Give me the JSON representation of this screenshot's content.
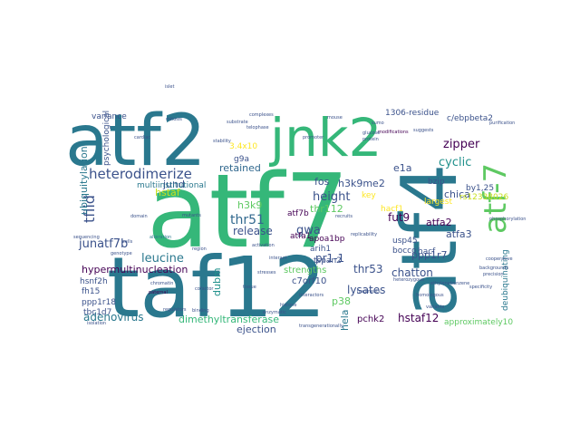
{
  "cloud": {
    "background": "#ffffff",
    "palette": [
      "#440154",
      "#3b528b",
      "#21918c",
      "#2a788e",
      "#5ec962",
      "#35b779",
      "#fde725",
      "#c8e020",
      "#31688e",
      "#482878"
    ],
    "words": [
      {
        "text": "atf7",
        "color": "#35b779"
      },
      {
        "text": "taf12",
        "color": "#2a788e"
      },
      {
        "text": "atf2",
        "color": "#2a788e"
      },
      {
        "text": "jnk2",
        "color": "#35b779"
      },
      {
        "text": "atf4",
        "color": "#2a788e"
      },
      {
        "text": "atf-7",
        "color": "#5ec962"
      },
      {
        "text": "heterodimerize",
        "color": "#3b528b"
      },
      {
        "text": "thr51",
        "color": "#31688e"
      },
      {
        "text": "retained",
        "color": "#31688e"
      },
      {
        "text": "height",
        "color": "#3b528b"
      },
      {
        "text": "tfiid",
        "color": "#3b528b"
      },
      {
        "text": "zipper",
        "color": "#440154"
      },
      {
        "text": "cyclic",
        "color": "#21918c"
      },
      {
        "text": "ubiquitylation",
        "color": "#2a788e"
      },
      {
        "text": "junatf7b",
        "color": "#3b528b"
      },
      {
        "text": "leucine",
        "color": "#2a788e"
      },
      {
        "text": "hypermultinucleation",
        "color": "#440154"
      },
      {
        "text": "release",
        "color": "#3b528b"
      },
      {
        "text": "gwa",
        "color": "#3b528b"
      },
      {
        "text": "h3k9me2",
        "color": "#3b528b"
      },
      {
        "text": "fut9",
        "color": "#440154"
      },
      {
        "text": "chica",
        "color": "#3b528b"
      },
      {
        "text": "e1a",
        "color": "#3b528b"
      },
      {
        "text": "fos",
        "color": "#3b528b"
      },
      {
        "text": "atfa2",
        "color": "#440154"
      },
      {
        "text": "atfa3",
        "color": "#3b528b"
      },
      {
        "text": "lysates",
        "color": "#3b528b"
      },
      {
        "text": "thr53",
        "color": "#3b528b"
      },
      {
        "text": "chatton",
        "color": "#3b528b"
      },
      {
        "text": "adenovirus",
        "color": "#2a788e"
      },
      {
        "text": "dimethyltransferase",
        "color": "#35b779"
      },
      {
        "text": "hstaf12",
        "color": "#440154"
      },
      {
        "text": "pchk2",
        "color": "#440154"
      },
      {
        "text": "p38",
        "color": "#5ec962"
      },
      {
        "text": "hela",
        "color": "#2a788e"
      },
      {
        "text": "ejection",
        "color": "#3b528b"
      },
      {
        "text": "dubm",
        "color": "#21918c"
      },
      {
        "text": "jund",
        "color": "#3b528b"
      },
      {
        "text": "hstaf",
        "color": "#c8e020"
      },
      {
        "text": "h3k9",
        "color": "#5ec962"
      },
      {
        "text": "thr112",
        "color": "#5ec962"
      },
      {
        "text": "pr1-1",
        "color": "#3b528b"
      },
      {
        "text": "ppp1r7",
        "color": "#3b528b"
      },
      {
        "text": "strengths",
        "color": "#5ec962"
      },
      {
        "text": "c7orf10",
        "color": "#3b528b"
      },
      {
        "text": "c/ebpbeta2",
        "color": "#3b528b"
      },
      {
        "text": "1306-residue",
        "color": "#3b528b"
      },
      {
        "text": "multiinstitutional",
        "color": "#2a788e"
      },
      {
        "text": "variance",
        "color": "#3b528b"
      },
      {
        "text": "psychological",
        "color": "#3b528b"
      },
      {
        "text": "3.4x10",
        "color": "#fde725"
      },
      {
        "text": "apoa1bp",
        "color": "#440154"
      },
      {
        "text": "usp45",
        "color": "#3b528b"
      },
      {
        "text": "bocco",
        "color": "#3b528b"
      },
      {
        "text": "hacf",
        "color": "#3b528b"
      },
      {
        "text": "largest",
        "color": "#fde725"
      },
      {
        "text": "deubiquinating",
        "color": "#2a788e"
      },
      {
        "text": "rs12338026",
        "color": "#c8e020"
      },
      {
        "text": "by1,25",
        "color": "#3b528b"
      },
      {
        "text": "bzip",
        "color": "#3b528b"
      },
      {
        "text": "approximately10",
        "color": "#5ec962"
      },
      {
        "text": "fh15",
        "color": "#3b528b"
      },
      {
        "text": "hsnf2h",
        "color": "#3b528b"
      },
      {
        "text": "ppp1r18",
        "color": "#3b528b"
      },
      {
        "text": "tbc1d7",
        "color": "#3b528b"
      },
      {
        "text": "atfa1",
        "color": "#440154"
      },
      {
        "text": "arih1",
        "color": "#3b528b"
      },
      {
        "text": "tspan2",
        "color": "#3b528b"
      },
      {
        "text": "g9a",
        "color": "#3b528b"
      },
      {
        "text": "key",
        "color": "#fde725"
      },
      {
        "text": "hacf1",
        "color": "#fde725"
      },
      {
        "text": "atf7b",
        "color": "#440154"
      },
      {
        "text": "alteration",
        "color": "#2a788e"
      },
      {
        "text": "stresses",
        "color": "#3b528b"
      },
      {
        "text": "paternal",
        "color": "#440154"
      },
      {
        "text": "chromatin",
        "color": "#3b528b"
      },
      {
        "text": "interactors",
        "color": "#3b528b"
      },
      {
        "text": "precision",
        "color": "#3b528b"
      },
      {
        "text": "backgrounds",
        "color": "#3b528b"
      },
      {
        "text": "complexes",
        "color": "#3b528b"
      },
      {
        "text": "purification",
        "color": "#3b528b"
      },
      {
        "text": "modifications",
        "color": "#440154"
      },
      {
        "text": "heterozygous",
        "color": "#3b528b"
      },
      {
        "text": "fragments",
        "color": "#3b528b"
      },
      {
        "text": "homologous",
        "color": "#3b528b"
      },
      {
        "text": "sequencing",
        "color": "#3b528b"
      },
      {
        "text": "replicability",
        "color": "#3b528b"
      },
      {
        "text": "telophase",
        "color": "#3b528b"
      },
      {
        "text": "ethylenebenzene",
        "color": "#3b528b"
      },
      {
        "text": "genotype",
        "color": "#3b528b"
      },
      {
        "text": "isolation",
        "color": "#3b528b"
      },
      {
        "text": "specificity",
        "color": "#3b528b"
      },
      {
        "text": "cooperative",
        "color": "#3b528b"
      },
      {
        "text": "histone",
        "color": "#3b528b"
      },
      {
        "text": "enzymatic",
        "color": "#3b528b"
      },
      {
        "text": "regulators",
        "color": "#3b528b"
      },
      {
        "text": "binding",
        "color": "#3b528b"
      },
      {
        "text": "transgenerationally",
        "color": "#3b528b"
      },
      {
        "text": "substrate",
        "color": "#3b528b"
      },
      {
        "text": "mitosis",
        "color": "#3b528b"
      },
      {
        "text": "cardiac",
        "color": "#3b528b"
      },
      {
        "text": "sumo",
        "color": "#3b528b"
      },
      {
        "text": "glucose",
        "color": "#3b528b"
      },
      {
        "text": "suggests",
        "color": "#3b528b"
      },
      {
        "text": "activation",
        "color": "#3b528b"
      },
      {
        "text": "interact",
        "color": "#3b528b"
      },
      {
        "text": "islet",
        "color": "#3b528b"
      },
      {
        "text": "mutants",
        "color": "#3b528b"
      },
      {
        "text": "cofactor",
        "color": "#3b528b"
      },
      {
        "text": "protein",
        "color": "#3b528b"
      },
      {
        "text": "cells",
        "color": "#3b528b"
      },
      {
        "text": "recruits",
        "color": "#3b528b"
      },
      {
        "text": "domain",
        "color": "#3b528b"
      },
      {
        "text": "tissue",
        "color": "#3b528b"
      },
      {
        "text": "promoter",
        "color": "#3b528b"
      },
      {
        "text": "phosphorylation",
        "color": "#3b528b"
      },
      {
        "text": "region",
        "color": "#3b528b"
      },
      {
        "text": "variants",
        "color": "#3b528b"
      },
      {
        "text": "mouse",
        "color": "#3b528b"
      },
      {
        "text": "stability",
        "color": "#3b528b"
      },
      {
        "text": "expression",
        "color": "#3b528b"
      }
    ]
  }
}
